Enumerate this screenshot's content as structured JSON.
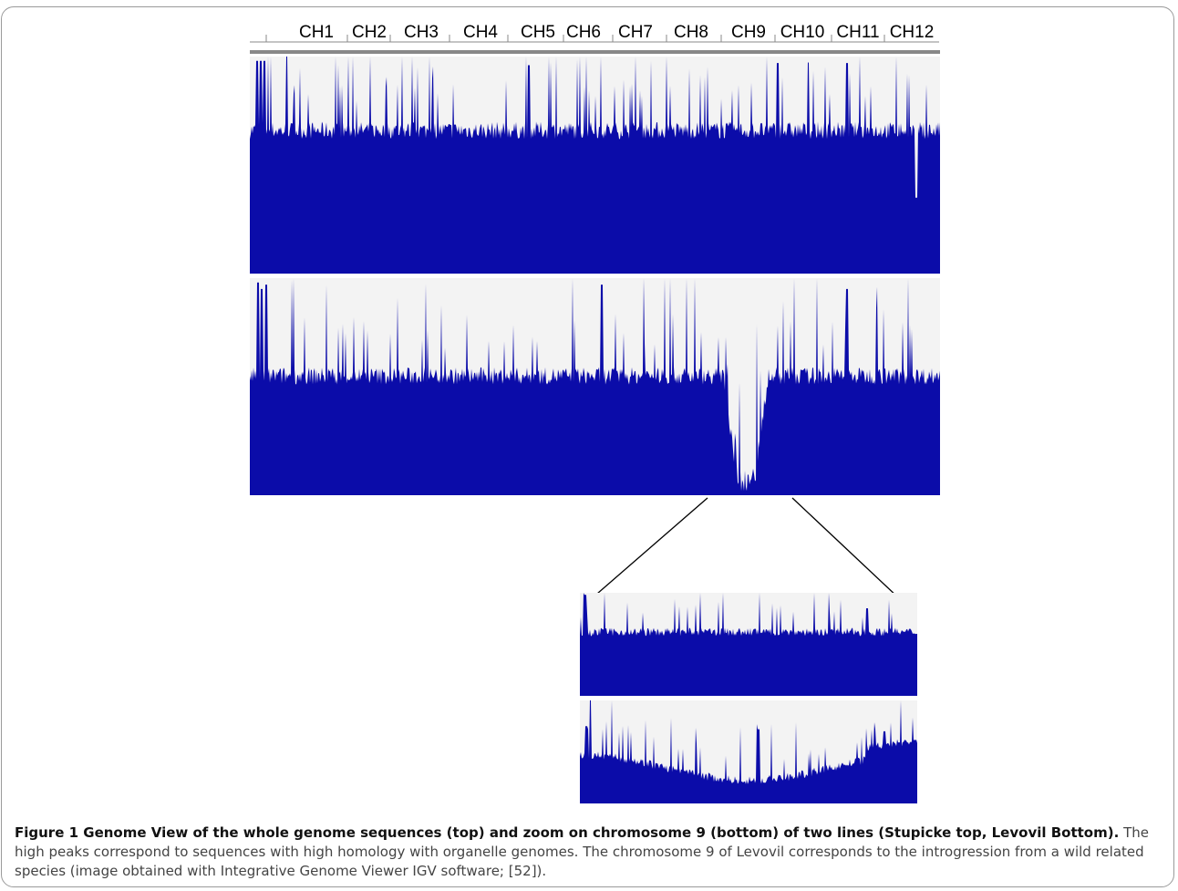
{
  "figure": {
    "chromosome_labels": [
      "CH1",
      "CH2",
      "CH3",
      "CH4",
      "CH5",
      "CH6",
      "CH7",
      "CH8",
      "CH9",
      "CH10",
      "CH11",
      "CH12"
    ],
    "colors": {
      "track": "#0b0ca9",
      "background": "#f3f3f3",
      "ruler": "#888888"
    }
  },
  "caption": {
    "title": "Figure 1 Genome View of the whole genome sequences (top) and zoom on chromosome 9 (bottom) of two lines (Stupicke top, Levovil Bottom).",
    "body": " The high peaks correspond to sequences with high homology with organelle genomes. The chromosome 9 of Levovil corresponds to the introgression from a wild related species (image obtained with Integrative Genome Viewer IGV software; [52])."
  }
}
